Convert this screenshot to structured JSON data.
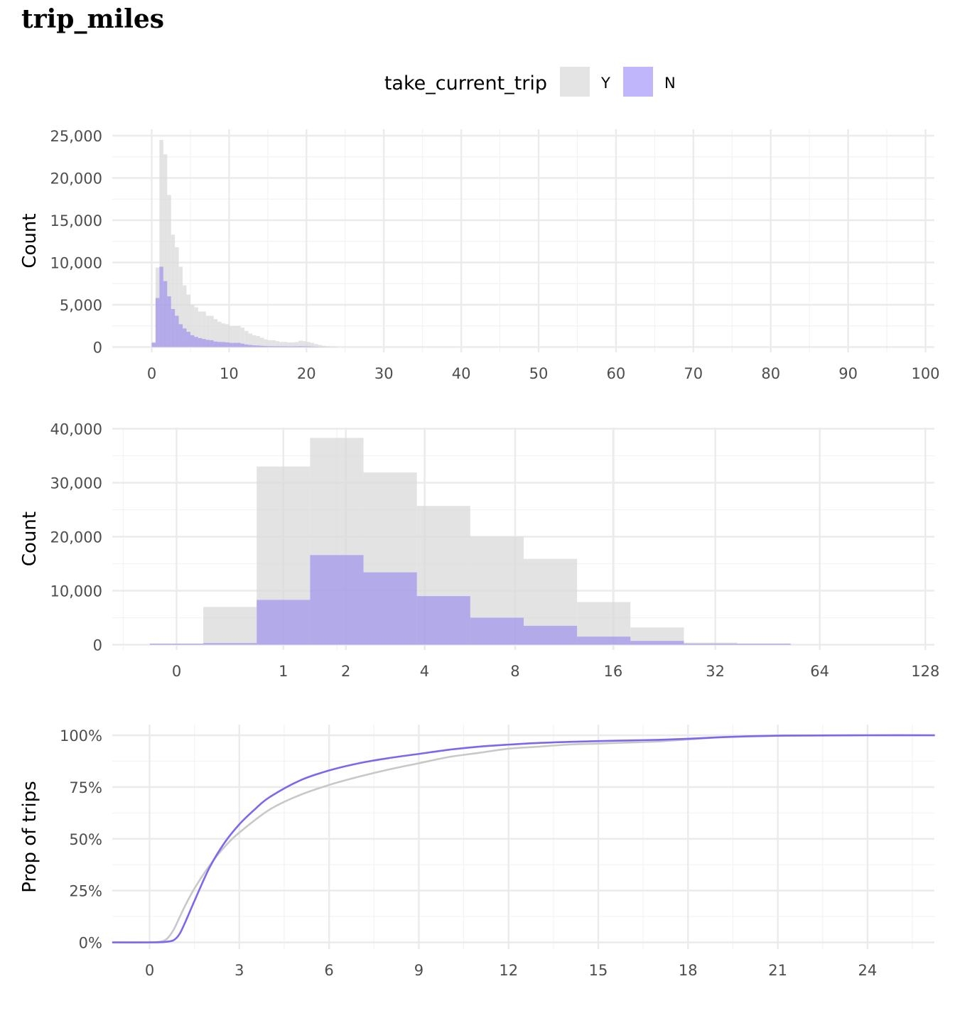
{
  "title": "trip_miles",
  "legend": {
    "title": "take_current_trip",
    "items": [
      {
        "label": "Y",
        "color": "#d9d9d9"
      },
      {
        "label": "N",
        "color": "#a99bf5"
      }
    ]
  },
  "colors": {
    "Y_fill": "#d9d9d9",
    "N_fill": "#8c7bef",
    "Y_line": "#c8c8c8",
    "N_line": "#7b68ee",
    "grid": "#ebebeb"
  },
  "chart_data": [
    {
      "type": "bar",
      "name": "histogram-linear",
      "xlabel": "",
      "ylabel": "Count",
      "xlim": [
        -5,
        101
      ],
      "ylim": [
        0,
        25000
      ],
      "x_ticks": [
        0,
        10,
        20,
        30,
        40,
        50,
        60,
        70,
        80,
        90,
        100
      ],
      "x_tick_labels": [
        "0",
        "10",
        "20",
        "30",
        "40",
        "50",
        "60",
        "70",
        "80",
        "90",
        "100"
      ],
      "y_ticks": [
        0,
        5000,
        10000,
        15000,
        20000,
        25000
      ],
      "y_tick_labels": [
        "0",
        "5,000",
        "10,000",
        "15,000",
        "20,000",
        "25,000"
      ],
      "bin_width": 0.5,
      "bin_start": 0,
      "series": [
        {
          "name": "Y",
          "values": [
            600,
            9400,
            24500,
            22800,
            18000,
            13300,
            11800,
            9500,
            7300,
            6200,
            5000,
            4700,
            4200,
            4200,
            3700,
            3700,
            3300,
            3000,
            2800,
            2700,
            2500,
            2500,
            2500,
            2300,
            1900,
            1600,
            1400,
            1300,
            1100,
            900,
            800,
            800,
            700,
            600,
            600,
            550,
            550,
            600,
            750,
            700,
            600,
            500,
            350,
            250,
            150,
            100,
            80,
            60
          ]
        },
        {
          "name": "N",
          "values": [
            500,
            5800,
            9500,
            7800,
            6000,
            4500,
            3700,
            2700,
            2200,
            1800,
            1400,
            1200,
            1050,
            950,
            850,
            800,
            650,
            600,
            600,
            550,
            500,
            500,
            500,
            400,
            300,
            250,
            200,
            180,
            150,
            120,
            110,
            100,
            100,
            90,
            90,
            80,
            80,
            90,
            100,
            90,
            80,
            60,
            40,
            30,
            20,
            10,
            5,
            5
          ]
        }
      ]
    },
    {
      "type": "bar",
      "name": "histogram-log2",
      "xlabel": "",
      "ylabel": "Count",
      "x_scale": "log2(x + 1)",
      "ylim": [
        0,
        40000
      ],
      "x_ticks": [
        0,
        1,
        2,
        4,
        8,
        16,
        32,
        64,
        128
      ],
      "x_tick_labels": [
        "0",
        "1",
        "2",
        "4",
        "8",
        "16",
        "32",
        "64",
        "128"
      ],
      "y_ticks": [
        0,
        10000,
        20000,
        30000,
        40000
      ],
      "y_tick_labels": [
        "0",
        "10,000",
        "20,000",
        "30,000",
        "40,000"
      ],
      "bin_width_log2": 0.5,
      "bin_start_log2": -0.25,
      "series": [
        {
          "name": "Y",
          "values": [
            100,
            7000,
            33000,
            38300,
            31900,
            25700,
            20000,
            15900,
            7900,
            3200,
            400,
            100,
            0,
            0
          ]
        },
        {
          "name": "N",
          "values": [
            150,
            300,
            8300,
            16600,
            13400,
            9000,
            5000,
            3500,
            1500,
            700,
            200,
            50,
            0,
            0
          ]
        }
      ]
    },
    {
      "type": "line",
      "name": "ecdf",
      "xlabel": "",
      "ylabel": "Prop of trips",
      "xlim": [
        -1.25,
        26.25
      ],
      "ylim": [
        0,
        1
      ],
      "x_ticks": [
        0,
        3,
        6,
        9,
        12,
        15,
        18,
        21,
        24
      ],
      "x_tick_labels": [
        "0",
        "3",
        "6",
        "9",
        "12",
        "15",
        "18",
        "21",
        "24"
      ],
      "y_ticks": [
        0,
        0.25,
        0.5,
        0.75,
        1
      ],
      "y_tick_labels": [
        "0%",
        "25%",
        "50%",
        "75%",
        "100%"
      ],
      "series": [
        {
          "name": "Y",
          "x": [
            -1.25,
            0,
            0.4,
            0.6,
            0.8,
            1,
            1.2,
            1.5,
            2,
            2.5,
            3,
            4,
            5,
            6,
            7,
            8,
            9,
            10,
            11,
            12,
            13,
            14,
            15,
            16,
            17,
            18,
            19,
            20,
            21,
            22,
            24,
            26.25
          ],
          "y": [
            0,
            0,
            0.005,
            0.02,
            0.06,
            0.12,
            0.18,
            0.26,
            0.37,
            0.46,
            0.53,
            0.64,
            0.71,
            0.76,
            0.8,
            0.835,
            0.865,
            0.895,
            0.915,
            0.935,
            0.945,
            0.955,
            0.96,
            0.965,
            0.97,
            0.98,
            0.99,
            0.995,
            0.998,
            0.999,
            1,
            1
          ]
        },
        {
          "name": "N",
          "x": [
            -1.25,
            0,
            0.5,
            0.8,
            1,
            1.2,
            1.5,
            2,
            2.5,
            3,
            3.5,
            4,
            5,
            6,
            7,
            8,
            9,
            10,
            11,
            12,
            13,
            14,
            15,
            16,
            17,
            18,
            19,
            20,
            21,
            22,
            24,
            26.25
          ],
          "y": [
            0,
            0,
            0.002,
            0.01,
            0.04,
            0.1,
            0.2,
            0.36,
            0.48,
            0.57,
            0.64,
            0.7,
            0.78,
            0.83,
            0.865,
            0.89,
            0.91,
            0.93,
            0.945,
            0.955,
            0.963,
            0.968,
            0.972,
            0.975,
            0.978,
            0.983,
            0.99,
            0.995,
            0.998,
            0.999,
            1,
            1
          ]
        }
      ]
    }
  ]
}
